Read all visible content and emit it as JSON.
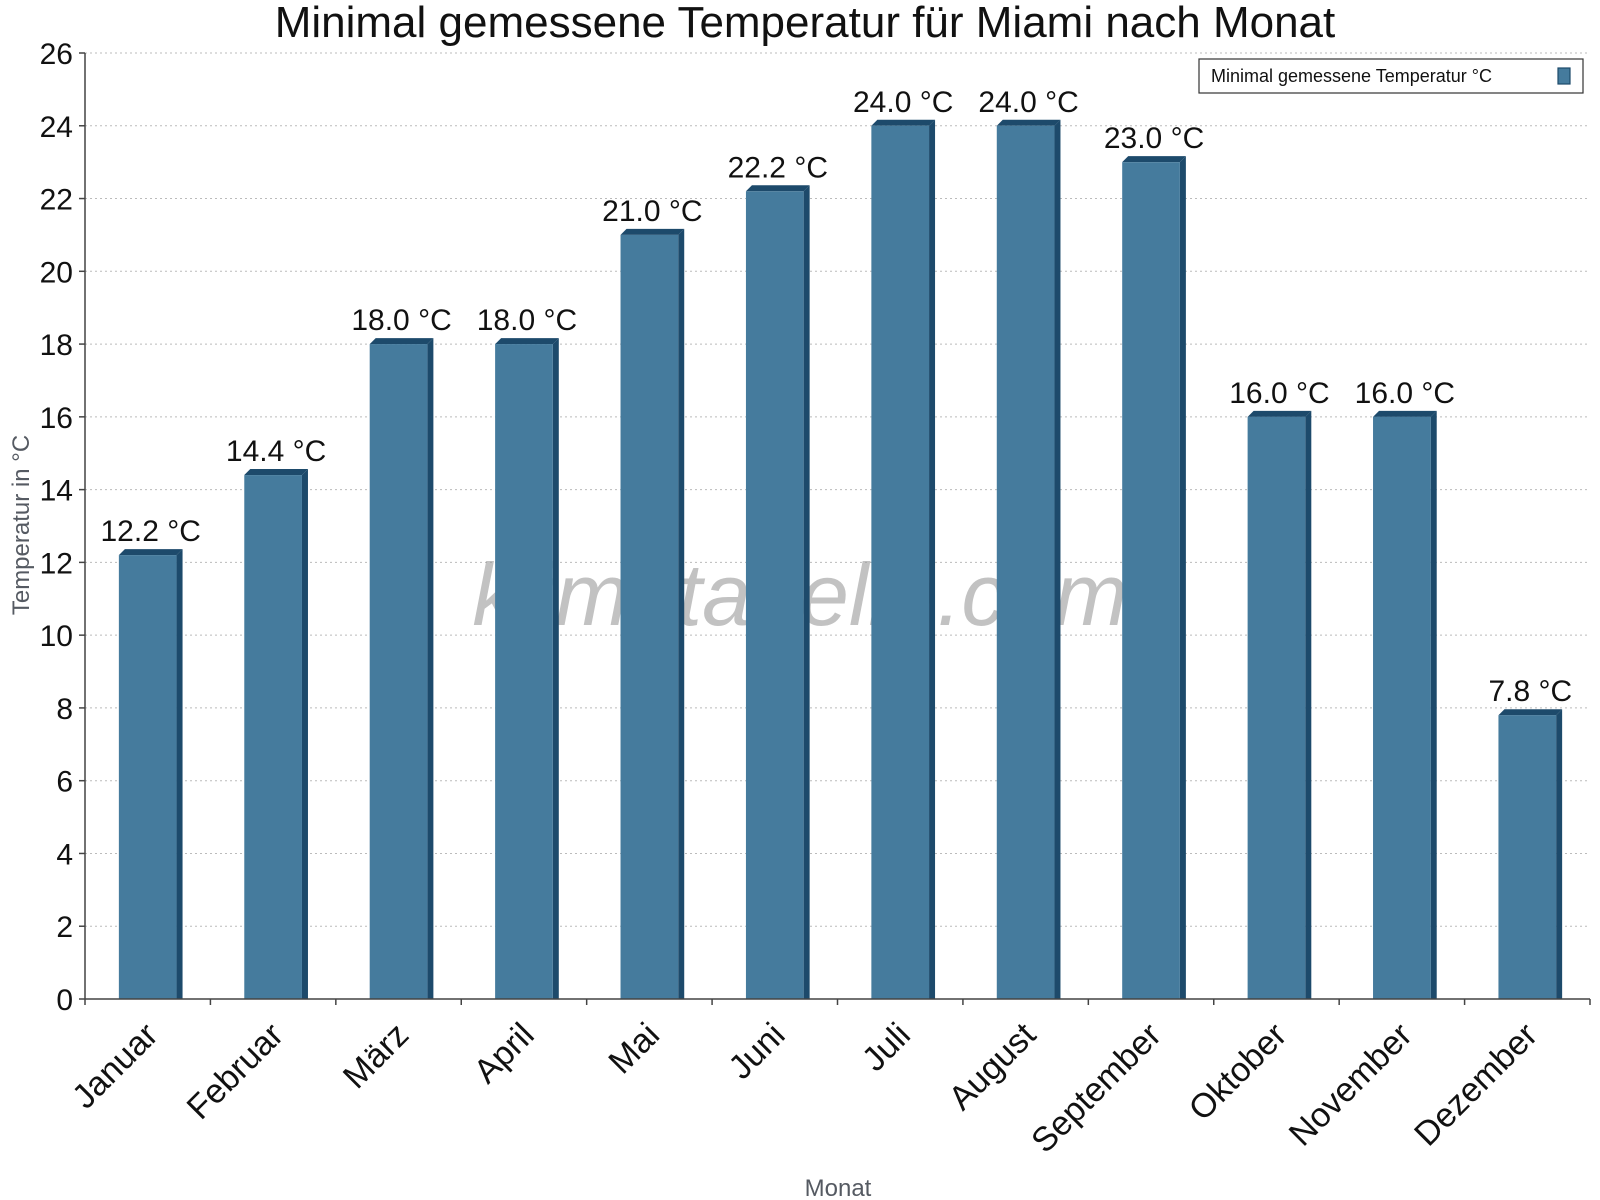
{
  "chart_data": {
    "type": "bar",
    "title": "Minimal gemessene Temperatur für Miami nach Monat",
    "xlabel": "Monat",
    "ylabel": "Temperatur in °C",
    "categories": [
      "Januar",
      "Februar",
      "März",
      "April",
      "Mai",
      "Juni",
      "Juli",
      "August",
      "September",
      "Oktober",
      "November",
      "Dezember"
    ],
    "series": [
      {
        "name": "Minimal gemessene Temperatur °C",
        "values": [
          12.2,
          14.4,
          18.0,
          18.0,
          21.0,
          22.2,
          24.0,
          24.0,
          23.0,
          16.0,
          16.0,
          7.8
        ],
        "labels": [
          "12.2 °C",
          "14.4 °C",
          "18.0 °C",
          "18.0 °C",
          "21.0 °C",
          "22.2 °C",
          "24.0 °C",
          "24.0 °C",
          "23.0 °C",
          "16.0 °C",
          "16.0 °C",
          "7.8 °C"
        ]
      }
    ],
    "ylim": [
      0,
      26
    ],
    "yticks": [
      "0",
      "2",
      "4",
      "6",
      "8",
      "10",
      "12",
      "14",
      "16",
      "18",
      "20",
      "22",
      "24",
      "26"
    ],
    "grid": true,
    "legend_position": "top-right",
    "bar_color": "#457b9d",
    "bar_side_color": "#1d4a6b",
    "watermark": "klimatabelle.com"
  }
}
